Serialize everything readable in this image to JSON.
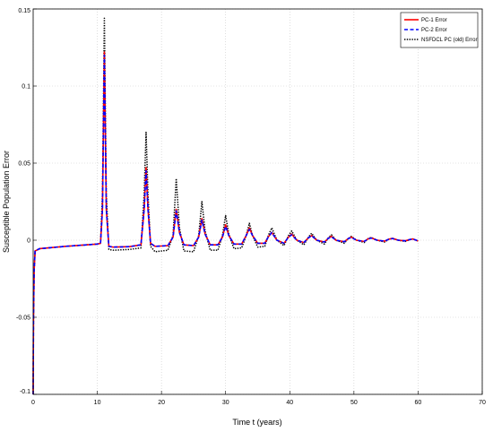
{
  "chart_data": {
    "type": "line",
    "title": "",
    "xlabel": "Time t (years)",
    "ylabel": "Susceptible Population Error",
    "xlim": [
      0,
      70
    ],
    "ylim": [
      -0.1,
      0.15
    ],
    "x_ticks": [
      0,
      10,
      20,
      30,
      40,
      50,
      60,
      70
    ],
    "y_ticks": [
      -0.1,
      -0.05,
      0,
      0.05,
      0.1,
      0.15
    ],
    "x_tick_labels": [
      "0",
      "10",
      "20",
      "30",
      "40",
      "50",
      "60",
      "70"
    ],
    "y_tick_labels": [
      "-0.1",
      "-0.05",
      "0",
      "0.05",
      "0.1",
      "0.15"
    ],
    "grid": true,
    "legend_position": "top-right",
    "series": [
      {
        "name": "PC-1 Error",
        "color": "#ff0000",
        "style": "solid",
        "x": [
          0,
          0.05,
          0.15,
          0.3,
          1,
          5,
          10,
          10.5,
          10.8,
          11.1,
          11.4,
          11.8,
          12.5,
          15,
          16.8,
          17.3,
          17.6,
          17.9,
          18.3,
          19,
          21,
          21.8,
          22.3,
          22.8,
          23.5,
          25,
          25.8,
          26.3,
          26.8,
          27.6,
          28.8,
          29.5,
          30,
          30.5,
          31.3,
          32.5,
          33.2,
          33.7,
          34.2,
          35,
          36.1,
          36.7,
          37.2,
          38,
          39.1,
          39.8,
          40.3,
          41.1,
          42.2,
          42.9,
          43.4,
          44.2,
          45.4,
          46,
          46.5,
          47.2,
          48.5,
          49.1,
          49.6,
          50.4,
          51.6,
          52.2,
          52.7,
          53.6,
          54.8,
          55.4,
          56,
          56.9,
          58,
          58.7,
          59.2,
          60
        ],
        "y": [
          -0.1,
          -0.05,
          -0.02,
          -0.007,
          -0.0055,
          -0.004,
          -0.0025,
          -0.002,
          0.02,
          0.122,
          0.02,
          -0.004,
          -0.0045,
          -0.0042,
          -0.003,
          0.02,
          0.047,
          0.02,
          -0.002,
          -0.004,
          -0.0035,
          0.002,
          0.02,
          0.005,
          -0.003,
          -0.0035,
          0.002,
          0.014,
          0.004,
          -0.003,
          -0.003,
          0.002,
          0.01,
          0.003,
          -0.0025,
          -0.0025,
          0.003,
          0.008,
          0.003,
          -0.002,
          -0.002,
          0.0025,
          0.005,
          0,
          -0.002,
          0.002,
          0.004,
          0,
          -0.0015,
          0.0015,
          0.003,
          0,
          -0.0012,
          0.0012,
          0.0025,
          0,
          -0.001,
          0.001,
          0.002,
          0,
          -0.0008,
          0.0008,
          0.0015,
          0,
          -0.0006,
          0.0006,
          0.0012,
          0,
          -0.0004,
          0.0004,
          0.0008,
          -0.0005
        ]
      },
      {
        "name": "PC-2 Error",
        "color": "#0000ff",
        "style": "dashed",
        "x": [
          0,
          0.05,
          0.15,
          0.3,
          1,
          5,
          10,
          10.5,
          10.8,
          11.1,
          11.4,
          11.8,
          12.5,
          15,
          16.8,
          17.3,
          17.6,
          17.9,
          18.3,
          19,
          21,
          21.8,
          22.3,
          22.8,
          23.5,
          25,
          25.8,
          26.3,
          26.8,
          27.6,
          28.8,
          29.5,
          30,
          30.5,
          31.3,
          32.5,
          33.2,
          33.7,
          34.2,
          35,
          36.1,
          36.7,
          37.2,
          38,
          39.1,
          39.8,
          40.3,
          41.1,
          42.2,
          42.9,
          43.4,
          44.2,
          45.4,
          46,
          46.5,
          47.2,
          48.5,
          49.1,
          49.6,
          50.4,
          51.6,
          52.2,
          52.7,
          53.6,
          54.8,
          55.4,
          56,
          56.9,
          58,
          58.7,
          59.2,
          60
        ],
        "y": [
          -0.1,
          -0.05,
          -0.02,
          -0.007,
          -0.0055,
          -0.004,
          -0.0025,
          -0.002,
          0.02,
          0.12,
          0.02,
          -0.004,
          -0.0045,
          -0.0042,
          -0.003,
          0.02,
          0.045,
          0.02,
          -0.002,
          -0.004,
          -0.0035,
          0.002,
          0.019,
          0.005,
          -0.003,
          -0.0035,
          0.002,
          0.013,
          0.004,
          -0.003,
          -0.003,
          0.002,
          0.009,
          0.003,
          -0.0025,
          -0.0025,
          0.003,
          0.007,
          0.003,
          -0.002,
          -0.002,
          0.0025,
          0.005,
          0,
          -0.002,
          0.002,
          0.0035,
          0,
          -0.0015,
          0.0015,
          0.003,
          0,
          -0.0012,
          0.0012,
          0.0022,
          0,
          -0.001,
          0.001,
          0.0018,
          0,
          -0.0008,
          0.0008,
          0.0014,
          0,
          -0.0006,
          0.0006,
          0.0011,
          0,
          -0.0004,
          0.0004,
          0.0008,
          -0.0005
        ]
      },
      {
        "name": "NSFDCL PC (old) Error",
        "color": "#000000",
        "style": "dotted",
        "x": [
          0,
          0.05,
          0.15,
          0.3,
          1,
          5,
          10,
          10.5,
          10.8,
          11.1,
          11.4,
          11.8,
          12.5,
          15,
          16.8,
          17.3,
          17.6,
          17.9,
          18.3,
          19,
          21,
          21.8,
          22.3,
          22.8,
          23.5,
          25,
          25.8,
          26.3,
          26.8,
          27.6,
          28.8,
          29.5,
          30,
          30.5,
          31.3,
          32.5,
          33.2,
          33.7,
          34.2,
          35,
          36.1,
          36.7,
          37.2,
          38,
          39.1,
          39.8,
          40.3,
          41.1,
          42.2,
          42.9,
          43.4,
          44.2,
          45.4,
          46,
          46.5,
          47.2,
          48.5,
          49.1,
          49.6,
          50.4,
          51.6,
          52.2,
          52.7,
          53.6,
          54.8,
          55.4,
          56,
          56.9,
          58,
          58.7,
          59.2,
          60
        ],
        "y": [
          -0.1,
          -0.05,
          -0.02,
          -0.007,
          -0.0055,
          -0.004,
          -0.0025,
          -0.002,
          0.03,
          0.144,
          0.03,
          -0.006,
          -0.0065,
          -0.006,
          -0.005,
          0.03,
          0.07,
          0.03,
          -0.004,
          -0.0075,
          -0.0065,
          0.003,
          0.04,
          0.008,
          -0.007,
          -0.0075,
          0.003,
          0.025,
          0.006,
          -0.0065,
          -0.0065,
          0.003,
          0.016,
          0.004,
          -0.0055,
          -0.005,
          0.003,
          0.011,
          0.003,
          -0.0045,
          -0.004,
          0.0035,
          0.008,
          0,
          -0.0035,
          0.003,
          0.006,
          0,
          -0.003,
          0.002,
          0.0045,
          0,
          -0.0025,
          0.0015,
          0.0035,
          0,
          -0.002,
          0.001,
          0.0025,
          0,
          -0.0015,
          0.001,
          0.0018,
          0,
          -0.0012,
          0.0006,
          0.0012,
          0,
          -0.0008,
          0.0004,
          0.0008,
          -0.0005
        ]
      }
    ]
  }
}
